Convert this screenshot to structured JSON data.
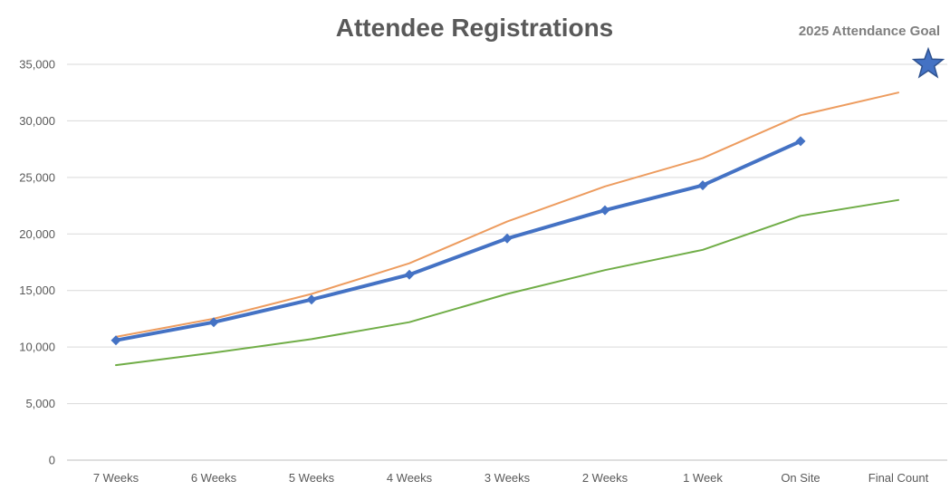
{
  "chart_data": {
    "type": "line",
    "title": "Attendee Registrations",
    "xlabel": "",
    "ylabel": "",
    "categories": [
      "7 Weeks",
      "6 Weeks",
      "5 Weeks",
      "4 Weeks",
      "3 Weeks",
      "2 Weeks",
      "1 Week",
      "On Site",
      "Final Count"
    ],
    "ylim": [
      0,
      35000
    ],
    "y_ticks": [
      0,
      5000,
      10000,
      15000,
      20000,
      25000,
      30000,
      35000
    ],
    "y_tick_labels": [
      "0",
      "5,000",
      "10,000",
      "15,000",
      "20,000",
      "25,000",
      "30,000",
      "35,000"
    ],
    "grid": true,
    "legend": "none",
    "series": [
      {
        "color": "#ed9c5f",
        "marker": "none",
        "values": [
          10900,
          12500,
          14700,
          17400,
          21100,
          24200,
          26700,
          30500,
          32500
        ]
      },
      {
        "color": "#70ad47",
        "marker": "none",
        "values": [
          8400,
          9500,
          10700,
          12200,
          14700,
          16800,
          18600,
          21600,
          23000
        ]
      },
      {
        "color": "#4472c4",
        "marker": "diamond",
        "values": [
          10600,
          12200,
          14200,
          16400,
          19600,
          22100,
          24300,
          28200,
          null
        ]
      }
    ],
    "annotation": {
      "label": "2025 Attendance Goal",
      "marker": "star",
      "color": "#4472c4",
      "x": "Final Count",
      "y": 35000
    }
  }
}
